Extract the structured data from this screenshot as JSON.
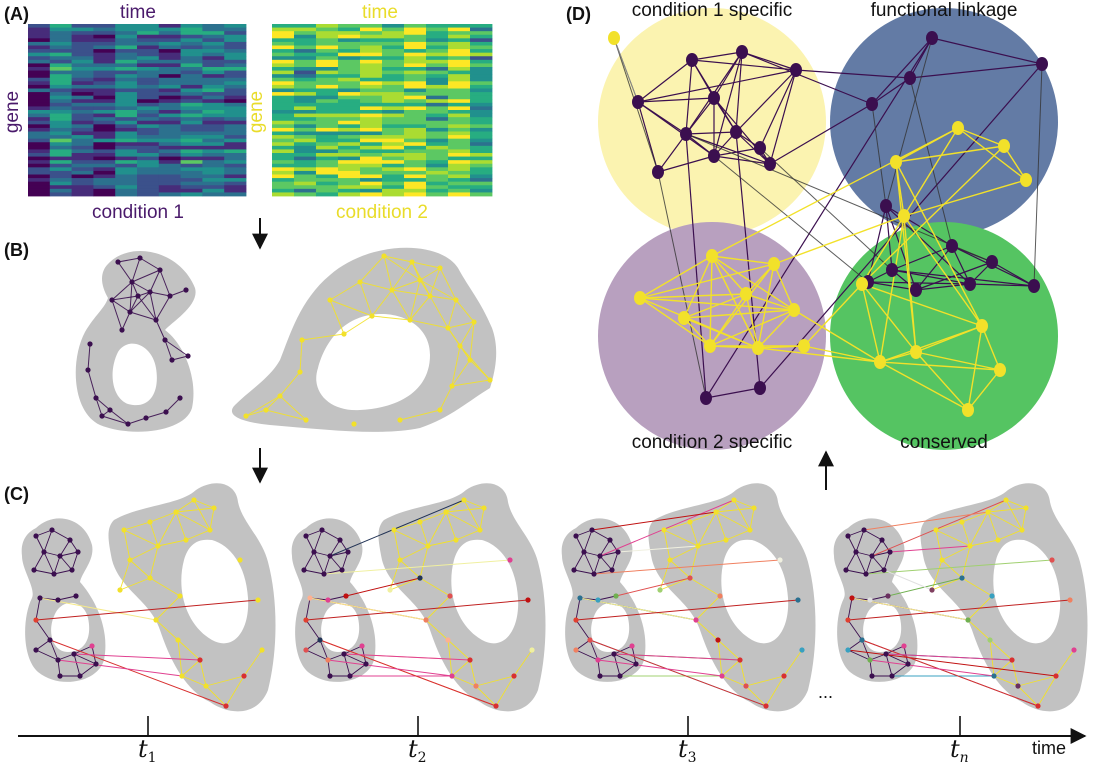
{
  "panels": {
    "a": "(A)",
    "b": "(B)",
    "c": "(C)",
    "d": "(D)"
  },
  "heatmaps": {
    "left": {
      "top": "time",
      "side": "gene",
      "bottom": "condition 1"
    },
    "right": {
      "top": "time",
      "side": "gene",
      "bottom": "condition 2"
    }
  },
  "modules": {
    "tl": "condition 1 specific",
    "tr": "functional linkage",
    "bl": "condition 2 specific",
    "br": "conserved"
  },
  "timeline": {
    "ticks": [
      {
        "base": "t",
        "sub": "1"
      },
      {
        "base": "t",
        "sub": "2"
      },
      {
        "base": "t",
        "sub": "3"
      },
      {
        "base": "t",
        "sub": "n"
      }
    ],
    "axis_label": "time",
    "ellipsis": "..."
  },
  "colors": {
    "purple": "#3b0f4f",
    "yellow": "#f2e12a",
    "grey_blob": "#c2c2c2",
    "circle_yellow": "#fbf3b0",
    "circle_blue": "#637ba5",
    "circle_purple": "#b8a0bf",
    "circle_green": "#55c462"
  }
}
